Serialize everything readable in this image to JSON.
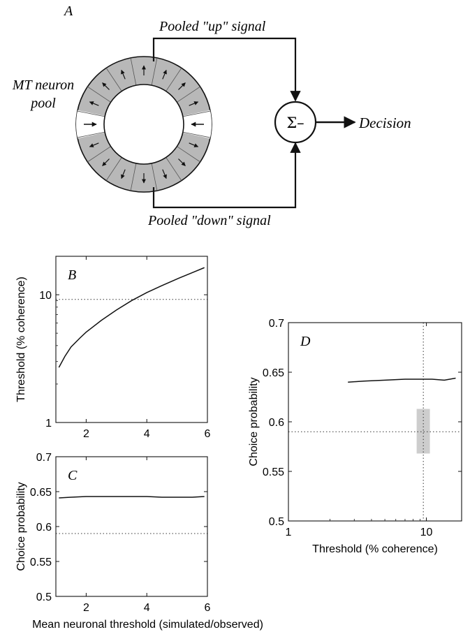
{
  "panel_a": {
    "letter": "A",
    "pool_label_line1": "MT neuron",
    "pool_label_line2": "pool",
    "up_signal": "Pooled \"up\" signal",
    "down_signal": "Pooled \"down\" signal",
    "sum_symbol": "Σ–",
    "decision": "Decision",
    "colors": {
      "pool_fill": "#b8b8b8",
      "stroke": "#111111"
    }
  },
  "chart_data": [
    {
      "id": "B",
      "type": "line",
      "letter": "B",
      "xlabel": "",
      "ylabel": "Threshold (% coherence)",
      "xlim": [
        1,
        6
      ],
      "ylim": [
        1,
        20
      ],
      "yscale": "log",
      "xticks": [
        2,
        4,
        6
      ],
      "yticks": [
        1,
        10
      ],
      "series": [
        {
          "x": [
            1.1,
            1.3,
            1.5,
            1.8,
            2.0,
            2.5,
            3.0,
            3.5,
            4.0,
            4.5,
            5.0,
            5.5,
            5.9
          ],
          "y": [
            2.7,
            3.3,
            3.9,
            4.6,
            5.1,
            6.3,
            7.6,
            9.0,
            10.4,
            11.8,
            13.3,
            14.9,
            16.3
          ]
        }
      ],
      "reference_lines": [
        {
          "axis": "y",
          "value": 9.2,
          "style": "dotted"
        }
      ]
    },
    {
      "id": "C",
      "type": "line",
      "letter": "C",
      "xlabel": "Mean neuronal threshold (simulated/observed)",
      "ylabel": "Choice probability",
      "xlim": [
        1,
        6
      ],
      "ylim": [
        0.5,
        0.7
      ],
      "xticks": [
        2,
        4,
        6
      ],
      "yticks": [
        0.5,
        0.55,
        0.6,
        0.65,
        0.7
      ],
      "series": [
        {
          "x": [
            1.1,
            1.5,
            2.0,
            2.5,
            3.0,
            3.5,
            4.0,
            4.5,
            5.0,
            5.5,
            5.9
          ],
          "y": [
            0.641,
            0.642,
            0.643,
            0.643,
            0.643,
            0.643,
            0.643,
            0.642,
            0.642,
            0.642,
            0.643
          ]
        }
      ],
      "reference_lines": [
        {
          "axis": "y",
          "value": 0.59,
          "style": "dotted"
        }
      ]
    },
    {
      "id": "D",
      "type": "line",
      "letter": "D",
      "xlabel": "Threshold (% coherence)",
      "ylabel": "Choice probability",
      "xlim": [
        1,
        18
      ],
      "xscale": "log",
      "ylim": [
        0.5,
        0.7
      ],
      "xticks": [
        1,
        10
      ],
      "yticks": [
        0.5,
        0.55,
        0.6,
        0.65,
        0.7
      ],
      "series": [
        {
          "x": [
            2.7,
            3.5,
            5.0,
            7.0,
            9.0,
            11.0,
            13.5,
            16.3
          ],
          "y": [
            0.64,
            0.641,
            0.642,
            0.643,
            0.643,
            0.643,
            0.642,
            0.644
          ]
        }
      ],
      "reference_lines": [
        {
          "axis": "x",
          "value": 9.5,
          "style": "dotted"
        },
        {
          "axis": "y",
          "value": 0.59,
          "style": "dotted"
        }
      ],
      "shaded_region": {
        "x": [
          8.5,
          10.6
        ],
        "y": [
          0.568,
          0.613
        ]
      }
    }
  ]
}
